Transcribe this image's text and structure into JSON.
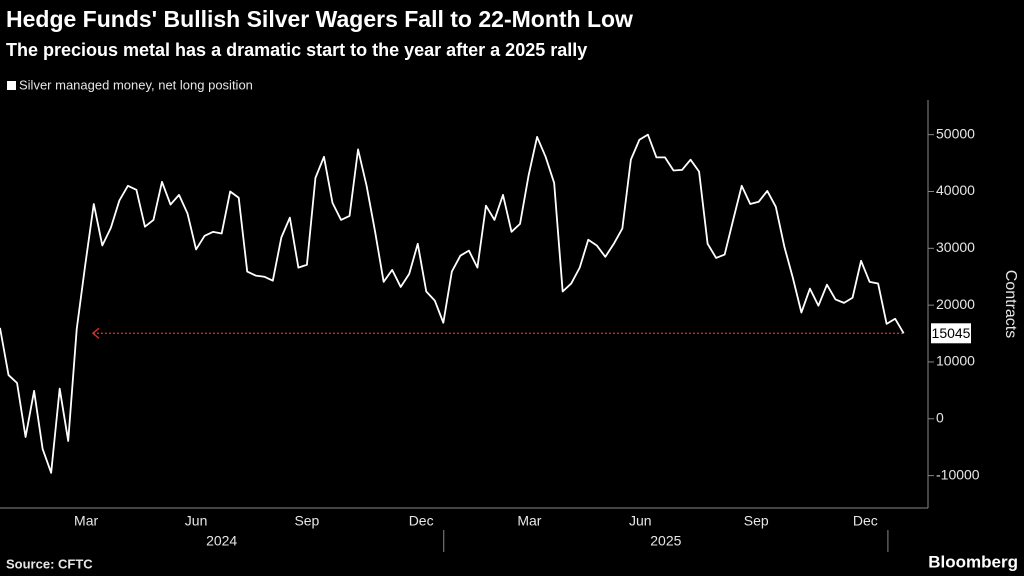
{
  "chart_data": {
    "type": "line",
    "title": "Hedge Funds' Bullish Silver Wagers Fall to 22-Month Low",
    "subtitle": "The precious metal has a dramatic start to the year after a 2025 rally",
    "y_label": "Contracts",
    "source": "Source: CFTC",
    "brand": "Bloomberg",
    "series": [
      {
        "name": "Silver managed money, net long position",
        "color": "#ffffff",
        "values": [
          16000,
          7700,
          6300,
          -3200,
          4900,
          -5300,
          -9500,
          5300,
          -3900,
          15800,
          27100,
          37800,
          30500,
          33600,
          38400,
          41000,
          40300,
          33800,
          35000,
          41700,
          37700,
          39400,
          36100,
          29800,
          32200,
          32900,
          32600,
          40000,
          38900,
          25900,
          25200,
          25000,
          24300,
          31900,
          35400,
          26600,
          27100,
          42400,
          46100,
          38000,
          35000,
          35700,
          47400,
          41000,
          32900,
          24100,
          26200,
          23200,
          25500,
          30800,
          22400,
          20800,
          16900,
          25900,
          28700,
          29600,
          26600,
          37500,
          35000,
          39400,
          32900,
          34300,
          42800,
          49600,
          46100,
          41500,
          22400,
          23800,
          26600,
          31500,
          30500,
          28500,
          30800,
          33500,
          45600,
          49100,
          50000,
          46000,
          46000,
          43700,
          43800,
          45600,
          43500,
          30800,
          28300,
          28900,
          35000,
          41000,
          37800,
          38200,
          40100,
          37300,
          30300,
          24800,
          18700,
          22900,
          19900,
          23600,
          21000,
          20400,
          21300,
          27800,
          24100,
          23800,
          16700,
          17600,
          15045
        ]
      }
    ],
    "reference_line_color": "#d0312d",
    "xlim": [
      0,
      108.5
    ],
    "xticks": [
      {
        "value": 10.1,
        "label": "Mar"
      },
      {
        "value": 23.0,
        "label": "Jun"
      },
      {
        "value": 36.0,
        "label": "Sep"
      },
      {
        "value": 49.4,
        "label": "Dec"
      },
      {
        "value": 62.1,
        "label": "Mar"
      },
      {
        "value": 75.1,
        "label": "Jun"
      },
      {
        "value": 88.7,
        "label": "Sep"
      },
      {
        "value": 101.5,
        "label": "Dec"
      }
    ],
    "year_labels": [
      {
        "value": 26.0,
        "label": "2024"
      },
      {
        "value": 78.1,
        "label": "2025"
      }
    ],
    "ylim": [
      -15700,
      56100
    ],
    "yticks": [
      -10000,
      0,
      10000,
      20000,
      30000,
      40000,
      50000
    ],
    "grid": false
  }
}
